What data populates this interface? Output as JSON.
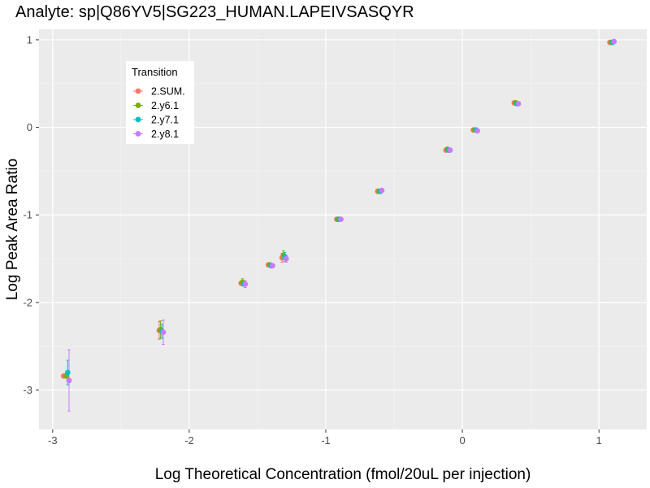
{
  "chart_data": {
    "type": "scatter",
    "title": "Analyte: sp|Q86YV5|SG223_HUMAN.LAPEIVSASQYR",
    "xlabel": "Log Theoretical Concentration (fmol/20uL per injection)",
    "ylabel": "Log Peak Area Ratio",
    "xlim": [
      -3.1,
      1.35
    ],
    "ylim": [
      -3.45,
      1.12
    ],
    "x_ticks": [
      -3,
      -2,
      -1,
      0,
      1
    ],
    "x_tick_labels": [
      "-3",
      "-2",
      "-1",
      "0",
      "1"
    ],
    "y_ticks": [
      -3,
      -2,
      -1,
      0,
      1
    ],
    "y_tick_labels": [
      "-3",
      "-2",
      "-1",
      "0",
      "1"
    ],
    "grid": true,
    "legend": {
      "title": "Transition",
      "placement": "top-left"
    },
    "series": [
      {
        "name": "2.SUM.",
        "color": "#F8766D",
        "points": [
          {
            "x": -2.92,
            "y": -2.84,
            "err": 0
          },
          {
            "x": -2.22,
            "y": -2.32,
            "err": 0.1
          },
          {
            "x": -1.62,
            "y": -1.78,
            "err": 0.02
          },
          {
            "x": -1.42,
            "y": -1.57,
            "err": 0.01
          },
          {
            "x": -1.32,
            "y": -1.49,
            "err": 0.05
          },
          {
            "x": -0.92,
            "y": -1.05,
            "err": 0
          },
          {
            "x": -0.62,
            "y": -0.73,
            "err": 0
          },
          {
            "x": -0.12,
            "y": -0.26,
            "err": 0.01
          },
          {
            "x": 0.08,
            "y": -0.03,
            "err": 0
          },
          {
            "x": 0.38,
            "y": 0.28,
            "err": 0
          },
          {
            "x": 1.08,
            "y": 0.97,
            "err": 0
          }
        ]
      },
      {
        "name": "2.y6.1",
        "color": "#7CAE00",
        "points": [
          {
            "x": -2.9,
            "y": -2.84,
            "err": 0
          },
          {
            "x": -2.21,
            "y": -2.31,
            "err": 0.1
          },
          {
            "x": -1.61,
            "y": -1.77,
            "err": 0.04
          },
          {
            "x": -1.41,
            "y": -1.57,
            "err": 0.01
          },
          {
            "x": -1.31,
            "y": -1.46,
            "err": 0.05
          },
          {
            "x": -0.91,
            "y": -1.05,
            "err": 0
          },
          {
            "x": -0.61,
            "y": -0.73,
            "err": 0
          },
          {
            "x": -0.11,
            "y": -0.25,
            "err": 0.01
          },
          {
            "x": 0.09,
            "y": -0.03,
            "err": 0
          },
          {
            "x": 0.39,
            "y": 0.28,
            "err": 0
          },
          {
            "x": 1.09,
            "y": 0.97,
            "err": 0
          }
        ]
      },
      {
        "name": "2.y7.1",
        "color": "#00BFC4",
        "points": [
          {
            "x": -2.89,
            "y": -2.8,
            "err": 0.14
          },
          {
            "x": -2.2,
            "y": -2.33,
            "err": 0.08
          },
          {
            "x": -1.6,
            "y": -1.79,
            "err": 0.02
          },
          {
            "x": -1.4,
            "y": -1.58,
            "err": 0.01
          },
          {
            "x": -1.3,
            "y": -1.48,
            "err": 0.05
          },
          {
            "x": -0.9,
            "y": -1.05,
            "err": 0
          },
          {
            "x": -0.6,
            "y": -0.73,
            "err": 0
          },
          {
            "x": -0.1,
            "y": -0.26,
            "err": 0.01
          },
          {
            "x": 0.1,
            "y": -0.03,
            "err": 0
          },
          {
            "x": 0.4,
            "y": 0.27,
            "err": 0
          },
          {
            "x": 1.1,
            "y": 0.97,
            "err": 0
          }
        ]
      },
      {
        "name": "2.y8.1",
        "color": "#C77CFF",
        "points": [
          {
            "x": -2.88,
            "y": -2.89,
            "err": 0.35
          },
          {
            "x": -2.19,
            "y": -2.34,
            "err": 0.14
          },
          {
            "x": -1.59,
            "y": -1.79,
            "err": 0.04
          },
          {
            "x": -1.39,
            "y": -1.58,
            "err": 0.02
          },
          {
            "x": -1.29,
            "y": -1.5,
            "err": 0.04
          },
          {
            "x": -0.89,
            "y": -1.05,
            "err": 0
          },
          {
            "x": -0.59,
            "y": -0.72,
            "err": 0
          },
          {
            "x": -0.09,
            "y": -0.26,
            "err": 0.01
          },
          {
            "x": 0.11,
            "y": -0.04,
            "err": 0
          },
          {
            "x": 0.41,
            "y": 0.27,
            "err": 0
          },
          {
            "x": 1.11,
            "y": 0.98,
            "err": 0
          }
        ]
      }
    ]
  }
}
